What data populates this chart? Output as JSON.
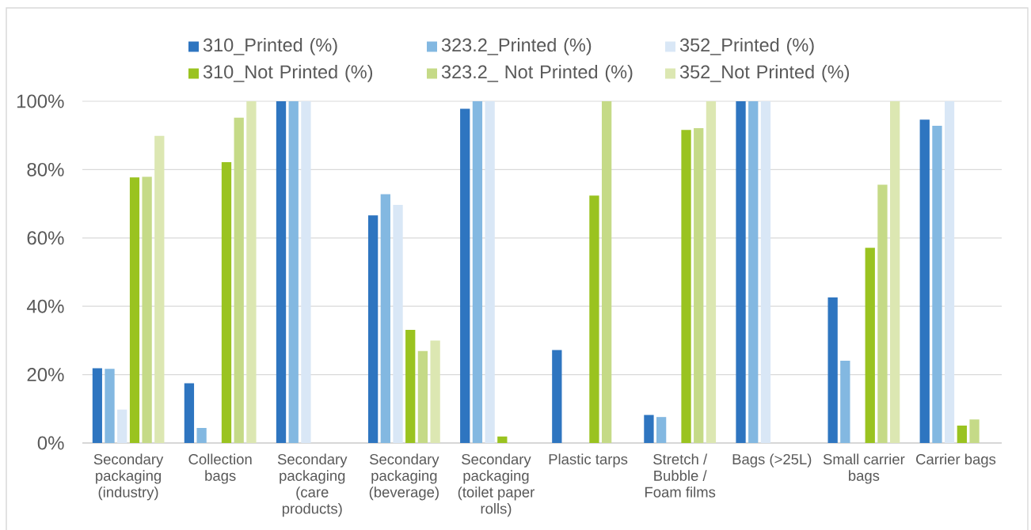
{
  "chart_data": {
    "type": "bar",
    "categories": [
      "Secondary packaging (industry)",
      "Collection bags",
      "Secondary packaging (care products)",
      "Secondary packaging (beverage)",
      "Secondary packaging (toilet paper rolls)",
      "Plastic tarps",
      "Stretch / Bubble / Foam films",
      "Bags (>25L)",
      "Small carrier bags",
      "Carrier bags"
    ],
    "series": [
      {
        "name": "310_Printed (%)",
        "color": "#2e75c0",
        "values": [
          21.9,
          17.5,
          100,
          66.6,
          97.8,
          27.2,
          8.2,
          100,
          42.6,
          94.6
        ]
      },
      {
        "name": "323.2_Printed (%)",
        "color": "#83b8e1",
        "values": [
          21.7,
          4.4,
          100,
          72.8,
          100,
          null,
          7.6,
          100,
          24.1,
          92.8
        ]
      },
      {
        "name": "352_Printed (%)",
        "color": "#d9e7f6",
        "values": [
          9.8,
          null,
          100,
          69.7,
          100,
          null,
          null,
          100,
          null,
          100
        ]
      },
      {
        "name": "310_Not Printed (%)",
        "color": "#9ac320",
        "values": [
          77.7,
          82.2,
          null,
          33.1,
          1.9,
          72.4,
          91.6,
          null,
          57.1,
          5.1
        ]
      },
      {
        "name": "323.2_ Not Printed (%)",
        "color": "#c5da87",
        "values": [
          77.9,
          95.2,
          null,
          26.9,
          null,
          100,
          92.1,
          null,
          75.6,
          6.9
        ]
      },
      {
        "name": "352_Not Printed (%)",
        "color": "#dce7b2",
        "values": [
          89.9,
          100,
          null,
          30.0,
          null,
          null,
          100,
          null,
          100,
          null
        ]
      }
    ],
    "ylim": [
      0,
      100
    ],
    "yticks": [
      {
        "value": 0,
        "label": "0%"
      },
      {
        "value": 20,
        "label": "20%"
      },
      {
        "value": 40,
        "label": "40%"
      },
      {
        "value": 60,
        "label": "60%"
      },
      {
        "value": 80,
        "label": "80%"
      },
      {
        "value": 100,
        "label": "100%"
      }
    ],
    "grid": "y",
    "legend": "top"
  }
}
